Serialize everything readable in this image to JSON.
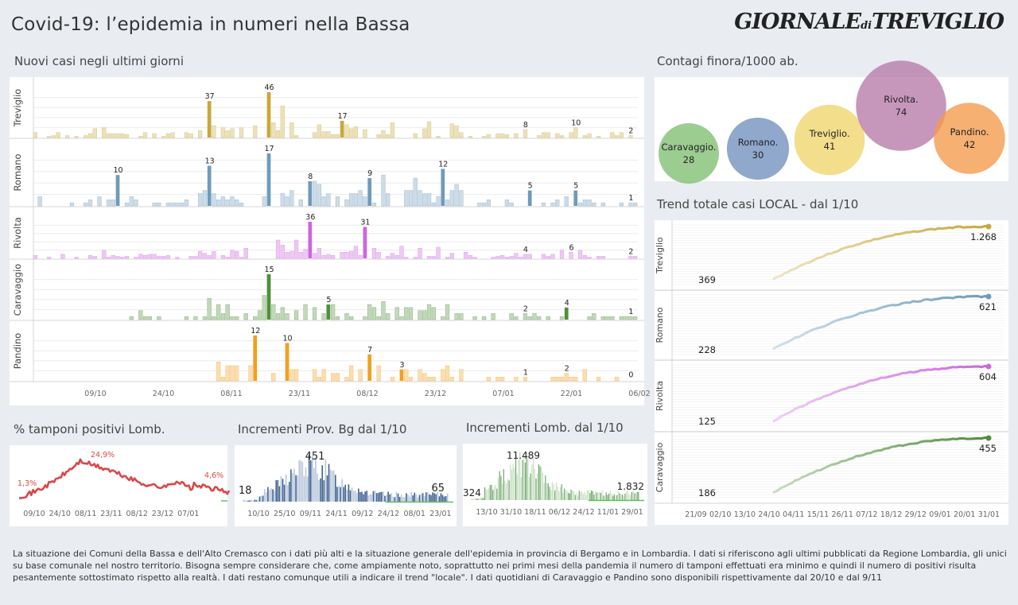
{
  "header": {
    "title": "Covid-19: l’epidemia  in numeri nella Bassa",
    "logo_main": "GIORNALE",
    "logo_small": "di",
    "logo_end": "TREVIGLIO"
  },
  "sections": {
    "daily": "Nuovi casi negli ultimi   giorni",
    "bubbles": "Contagi finora/1000 ab.",
    "trend": "Trend totale casi  LOCAL - dal 1/10",
    "pos": "% tamponi positivi Lomb.",
    "bg": "Incrementi Prov. Bg dal 1/10",
    "lomb": "Incrementi Lomb. dal 1/10"
  },
  "colors": {
    "treviglio": "#c8a83a",
    "romano": "#6f9bbb",
    "rivolta": "#cc66e0",
    "caravaggio": "#4f8f3a",
    "pandino": "#f0a020",
    "red": "#d94848",
    "navy": "#3d5f8f",
    "green_bar": "#6fa86a"
  },
  "footer": "La situazione dei Comuni della Bassa e dell'Alto Cremasco con i dati più alti e la situazione generale dell'epidemia in provincia di Bergamo e in Lombardia.  I dati si riferiscono agli ultimi pubblicati da Regione Lombardia, gli unici su base comunale nel  nostro territorio.  Bisogna sempre considerare che, come ampiamente noto, soprattutto nei primi mesi della pandemia il numero di tamponi effettuati era minimo e quindi il numero di positivi risulta pesantemente sottostimato rispetto alla realtà. I dati restano comunque utili a indicare il trend \"locale\".  I dati quotidiani di Caravaggio e Pandino sono disponibili rispettivamente dal 20/10 e dal 9/11",
  "chart_data": [
    {
      "type": "bar",
      "id": "daily",
      "x_ticks": [
        "09/10",
        "24/10",
        "08/11",
        "23/11",
        "08/12",
        "23/12",
        "07/01",
        "22/01",
        "06/02"
      ],
      "series": [
        {
          "name": "Treviglio",
          "annotations": [
            {
              "day": 38,
              "label": "37"
            },
            {
              "day": 51,
              "label": "46"
            },
            {
              "day": 67,
              "label": "17"
            },
            {
              "day": 107,
              "label": "8"
            },
            {
              "day": 118,
              "label": "10"
            },
            {
              "day": 130,
              "label": "2"
            }
          ],
          "max": 46
        },
        {
          "name": "Romano",
          "annotations": [
            {
              "day": 18,
              "label": "10"
            },
            {
              "day": 38,
              "label": "13"
            },
            {
              "day": 51,
              "label": "17"
            },
            {
              "day": 60,
              "label": "8"
            },
            {
              "day": 73,
              "label": "9"
            },
            {
              "day": 89,
              "label": "12"
            },
            {
              "day": 108,
              "label": "5"
            },
            {
              "day": 118,
              "label": "5"
            },
            {
              "day": 130,
              "label": "1"
            }
          ],
          "max": 17
        },
        {
          "name": "Rivolta",
          "annotations": [
            {
              "day": 60,
              "label": "36"
            },
            {
              "day": 72,
              "label": "31"
            },
            {
              "day": 107,
              "label": "4"
            },
            {
              "day": 117,
              "label": "6"
            },
            {
              "day": 130,
              "label": "2"
            }
          ],
          "max": 36
        },
        {
          "name": "Caravaggio",
          "annotations": [
            {
              "day": 51,
              "label": "15"
            },
            {
              "day": 64,
              "label": "5"
            },
            {
              "day": 107,
              "label": "2"
            },
            {
              "day": 116,
              "label": "4"
            },
            {
              "day": 130,
              "label": "1"
            }
          ],
          "max": 15
        },
        {
          "name": "Pandino",
          "annotations": [
            {
              "day": 48,
              "label": "12"
            },
            {
              "day": 55,
              "label": "10"
            },
            {
              "day": 73,
              "label": "7"
            },
            {
              "day": 80,
              "label": "3"
            },
            {
              "day": 107,
              "label": "1"
            },
            {
              "day": 116,
              "label": "2"
            },
            {
              "day": 130,
              "label": "0"
            }
          ],
          "max": 12
        }
      ]
    },
    {
      "type": "scatter",
      "id": "bubbles",
      "title": "Contagi finora/1000 ab.",
      "points": [
        {
          "name": "Caravaggio.",
          "value": 28
        },
        {
          "name": "Romano.",
          "value": 30
        },
        {
          "name": "Treviglio.",
          "value": 41
        },
        {
          "name": "Rivolta.",
          "value": 74
        },
        {
          "name": "Pandino.",
          "value": 42
        }
      ]
    },
    {
      "type": "line",
      "id": "trend",
      "title": "Trend totale casi  LOCAL - dal 1/10",
      "x_ticks": [
        "21/09",
        "02/10",
        "13/10",
        "24/10",
        "04/11",
        "15/11",
        "26/11",
        "07/12",
        "18/12",
        "29/12",
        "09/01",
        "20/01",
        "31/01"
      ],
      "series": [
        {
          "name": "Treviglio",
          "start": "369",
          "end": "1.268"
        },
        {
          "name": "Romano",
          "start": "228",
          "end": "621"
        },
        {
          "name": "Rivolta",
          "start": "125",
          "end": "604"
        },
        {
          "name": "Caravaggio",
          "start": "186",
          "end": "455"
        }
      ]
    },
    {
      "type": "line",
      "id": "pos",
      "title": "% tamponi positivi Lomb.",
      "x_ticks": [
        "09/10",
        "24/10",
        "08/11",
        "23/11",
        "08/12",
        "23/12",
        "07/01"
      ],
      "labels": [
        "1,3%",
        "24,9%",
        "4,6%"
      ]
    },
    {
      "type": "bar",
      "id": "bg",
      "title": "Incrementi Prov. Bg dal 1/10",
      "x_ticks": [
        "10/10",
        "25/10",
        "09/11",
        "24/11",
        "09/12",
        "24/12",
        "08/01",
        "23/01"
      ],
      "labels": [
        "18",
        "451",
        "65"
      ]
    },
    {
      "type": "bar",
      "id": "lomb",
      "title": "Incrementi Lomb. dal 1/10",
      "x_ticks": [
        "13/10",
        "31/10",
        "18/11",
        "06/12",
        "24/12",
        "11/01",
        "29/01"
      ],
      "labels": [
        "324",
        "11.489",
        "1.832"
      ]
    }
  ]
}
